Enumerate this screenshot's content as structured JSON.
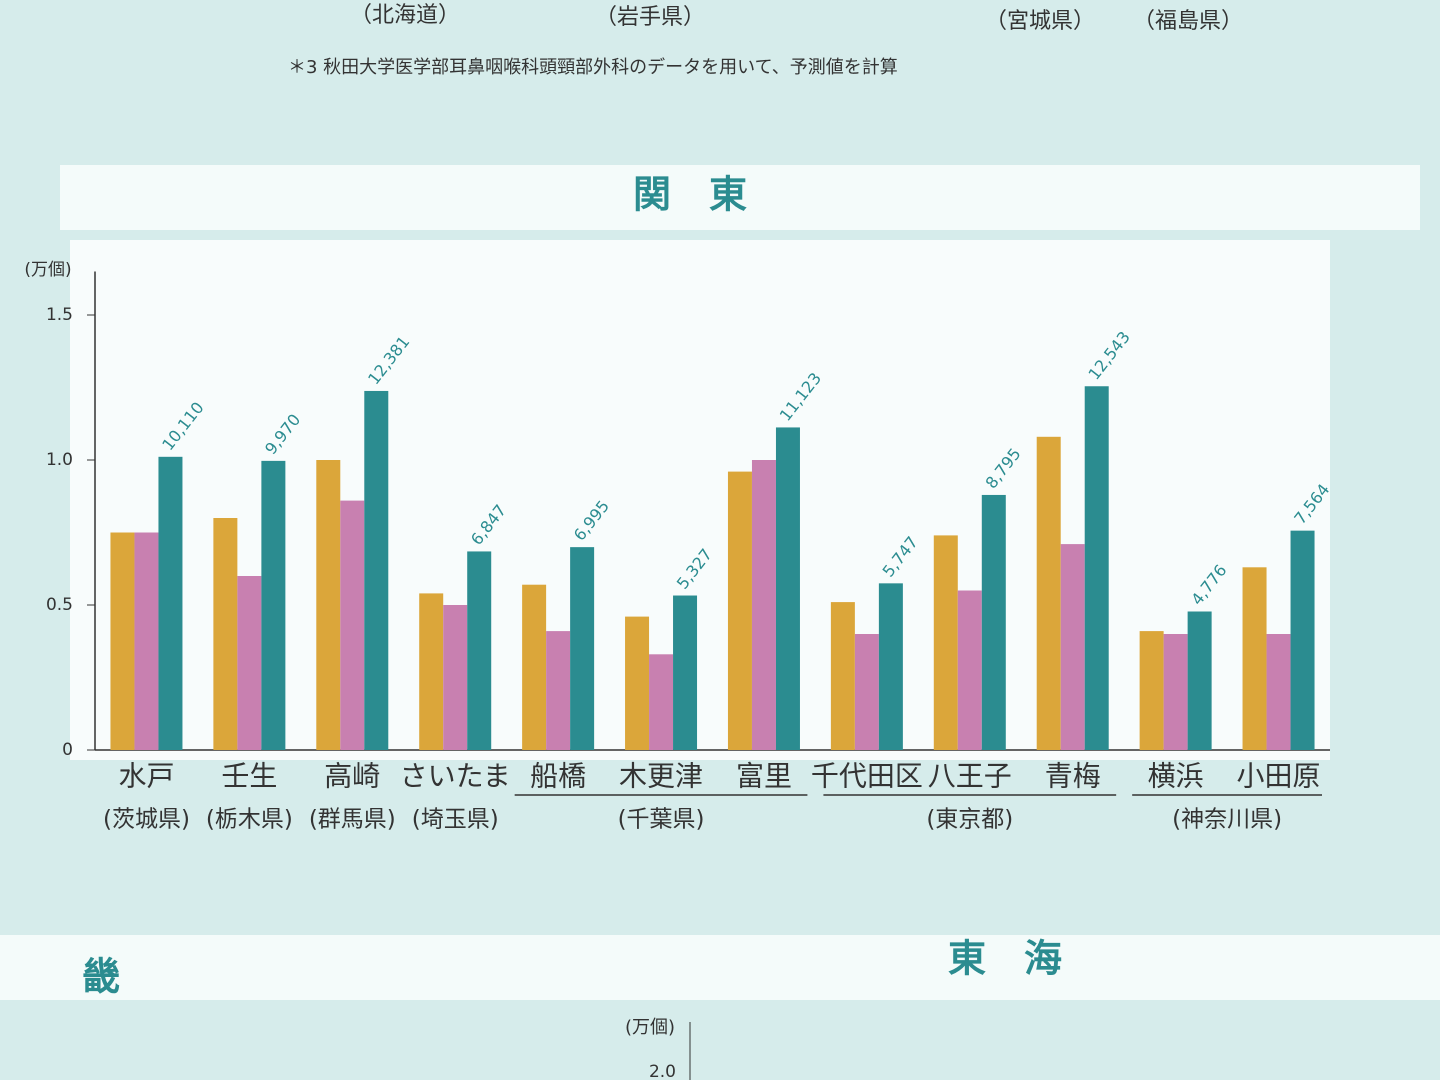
{
  "header_fragments": [
    "（北海道）",
    "（岩手県）",
    "（宮城県）",
    "（福島県）"
  ],
  "footnote": "＊3 秋田大学医学部耳鼻咽喉科頭頸部外科のデータを用いて、予測値を計算",
  "section_title": "関　東",
  "lower_titles": [
    "畿",
    "東　海"
  ],
  "lower_axis_label": "(万個)",
  "lower_axis_tick": "2.0",
  "chart_data": {
    "type": "bar",
    "y_label": "(万個)",
    "categories": [
      "水戸",
      "壬生",
      "高崎",
      "さいたま",
      "船橋",
      "木更津",
      "富里",
      "千代田区",
      "八王子",
      "青梅",
      "横浜",
      "小田原"
    ],
    "groups": [
      {
        "label": "(茨城県)",
        "members": [
          "水戸"
        ]
      },
      {
        "label": "(栃木県)",
        "members": [
          "壬生"
        ]
      },
      {
        "label": "(群馬県)",
        "members": [
          "高崎"
        ]
      },
      {
        "label": "(埼玉県)",
        "members": [
          "さいたま"
        ]
      },
      {
        "label": "(千葉県)",
        "members": [
          "船橋",
          "木更津",
          "富里"
        ]
      },
      {
        "label": "(東京都)",
        "members": [
          "千代田区",
          "八王子",
          "青梅"
        ]
      },
      {
        "label": "(神奈川県)",
        "members": [
          "横浜",
          "小田原"
        ]
      }
    ],
    "series": [
      {
        "color": "#dba63a",
        "values": [
          0.75,
          0.8,
          1.0,
          0.54,
          0.57,
          0.46,
          0.96,
          0.51,
          0.74,
          1.08,
          0.41,
          0.63
        ]
      },
      {
        "color": "#c880b0",
        "values": [
          0.75,
          0.6,
          0.86,
          0.5,
          0.41,
          0.33,
          1.0,
          0.4,
          0.55,
          0.71,
          0.4,
          0.4
        ]
      },
      {
        "color": "#2b8c90",
        "values": [
          1.011,
          0.997,
          1.2381,
          0.6847,
          0.6995,
          0.5327,
          1.1123,
          0.5747,
          0.8795,
          1.2543,
          0.4776,
          0.7564
        ],
        "value_labels": [
          "10,110",
          "9,970",
          "12,381",
          "6,847",
          "6,995",
          "5,327",
          "11,123",
          "5,747",
          "8,795",
          "12,543",
          "4,776",
          "7,564"
        ]
      }
    ],
    "ylim": [
      0,
      1.65
    ],
    "yticks": [
      0,
      0.5,
      {
        "value": 1,
        "label": "1.0"
      },
      1.5
    ],
    "grid": false
  }
}
